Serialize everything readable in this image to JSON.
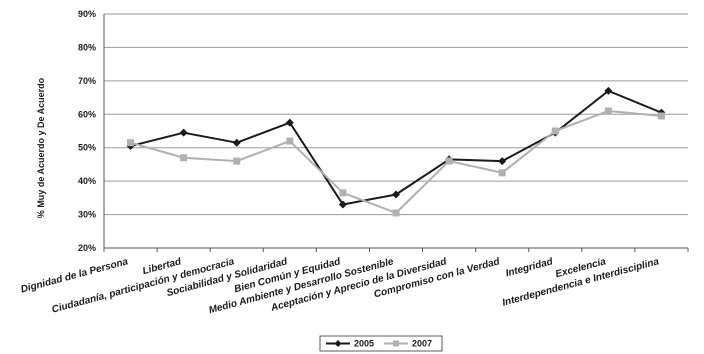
{
  "chart_data": {
    "type": "line",
    "categories": [
      "Dignidad de la Persona",
      "Libertad",
      "Ciudadanía, participación y democracia",
      "Sociabilidad y Solidaridad",
      "Bien Común y Equidad",
      "Medio Ambiente y Desarrollo Sostenible",
      "Aceptación y Aprecio de la Diversidad",
      "Compromiso con la Verdad",
      "Integridad",
      "Excelencia",
      "Interdependencia e Interdisciplina"
    ],
    "series": [
      {
        "name": "2005",
        "color": "#1a1a1a",
        "marker": "diamond",
        "values": [
          50.5,
          54.5,
          51.5,
          57.5,
          33,
          36,
          46.5,
          46,
          54.5,
          67,
          60.5
        ]
      },
      {
        "name": "2007",
        "color": "#b0b0b0",
        "marker": "square",
        "values": [
          51.5,
          47,
          46,
          52,
          36.5,
          30.5,
          46,
          42.5,
          55,
          61,
          59.5
        ]
      }
    ],
    "ylabel": "% Muy de Acuerdo y De Acuerdo",
    "xlabel": "",
    "ylim": [
      20,
      90
    ],
    "yticks": [
      "20%",
      "30%",
      "40%",
      "50%",
      "60%",
      "70%",
      "80%",
      "90%"
    ],
    "ytick_values": [
      20,
      30,
      40,
      50,
      60,
      70,
      80,
      90
    ],
    "grid": true,
    "legend_position": "bottom-center"
  }
}
